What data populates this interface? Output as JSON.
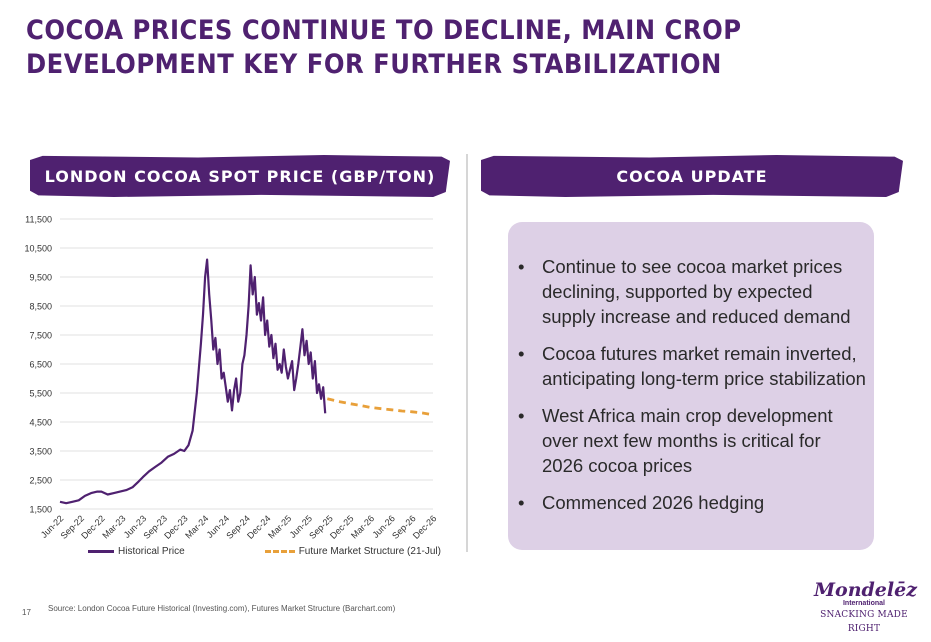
{
  "slide": {
    "title": "COCOA PRICES CONTINUE TO DECLINE, MAIN CROP DEVELOPMENT KEY FOR FURTHER STABILIZATION",
    "left_banner": "LONDON COCOA SPOT PRICE (GBP/TON)",
    "right_banner": "COCOA UPDATE",
    "bullets": [
      "Continue to see cocoa market prices declining, supported by expected supply increase and reduced demand",
      "Cocoa futures market remain inverted, anticipating long-term price stabilization",
      "West Africa main crop development over next few months is critical for 2026 cocoa prices",
      "Commenced 2026 hedging"
    ],
    "bullet_symbol": "•",
    "page_number": "17",
    "source": "Source: London Cocoa Future Historical (Investing.com), Futures Market Structure (Barchart.com)",
    "logo": {
      "name": "Mondelēz",
      "sub": "International",
      "tagline": "SNACKING MADE RIGHT"
    },
    "colors": {
      "brand_purple": "#4f2170",
      "futures_orange": "#e8a03a",
      "update_box": "#ddd0e6"
    }
  },
  "chart_data": {
    "type": "line",
    "title": "LONDON COCOA SPOT PRICE (GBP/TON)",
    "ylim": [
      1500,
      11500
    ],
    "y_ticks": [
      "1,500",
      "2,500",
      "3,500",
      "4,500",
      "5,500",
      "6,500",
      "7,500",
      "8,500",
      "9,500",
      "10,500",
      "11,500"
    ],
    "y_tick_values": [
      1500,
      2500,
      3500,
      4500,
      5500,
      6500,
      7500,
      8500,
      9500,
      10500,
      11500
    ],
    "categories": [
      "Jun-22",
      "Sep-22",
      "Dec-22",
      "Mar-23",
      "Jun-23",
      "Sep-23",
      "Dec-23",
      "Mar-24",
      "Jun-24",
      "Sep-24",
      "Dec-24",
      "Mar-25",
      "Jun-25",
      "Sep-25",
      "Dec-25",
      "Mar-26",
      "Jun-26",
      "Sep-26",
      "Dec-26"
    ],
    "grid": true,
    "legend_position": "bottom",
    "series": [
      {
        "name": "Historical Price",
        "color": "#4f2170",
        "style": "solid",
        "x": [
          0,
          0.3,
          0.6,
          0.9,
          1.2,
          1.5,
          1.8,
          2.0,
          2.3,
          2.6,
          2.9,
          3.2,
          3.5,
          3.8,
          4.0,
          4.3,
          4.6,
          4.9,
          5.2,
          5.5,
          5.8,
          6.0,
          6.2,
          6.4,
          6.6,
          6.8,
          6.9,
          7.0,
          7.1,
          7.2,
          7.3,
          7.4,
          7.5,
          7.6,
          7.7,
          7.8,
          7.9,
          8.0,
          8.1,
          8.2,
          8.3,
          8.4,
          8.5,
          8.6,
          8.7,
          8.8,
          8.9,
          9.0,
          9.1,
          9.2,
          9.3,
          9.4,
          9.5,
          9.6,
          9.7,
          9.8,
          9.9,
          10.0,
          10.1,
          10.2,
          10.3,
          10.4,
          10.5,
          10.6,
          10.7,
          10.8,
          10.9,
          11.0,
          11.1,
          11.2,
          11.3,
          11.4,
          11.5,
          11.6,
          11.7,
          11.8,
          11.9,
          12.0,
          12.1,
          12.2,
          12.3,
          12.4,
          12.5,
          12.6,
          12.7,
          12.8
        ],
        "values": [
          1750,
          1700,
          1750,
          1800,
          1950,
          2050,
          2100,
          2100,
          2000,
          2050,
          2100,
          2150,
          2250,
          2450,
          2600,
          2800,
          2950,
          3100,
          3300,
          3400,
          3550,
          3500,
          3700,
          4200,
          5500,
          7200,
          8200,
          9500,
          10100,
          8900,
          8000,
          7000,
          7400,
          6500,
          7000,
          6000,
          6200,
          5700,
          5200,
          5600,
          4900,
          5600,
          6000,
          5200,
          5500,
          6500,
          6800,
          7500,
          8500,
          9900,
          8900,
          9500,
          8200,
          8600,
          8000,
          8800,
          7500,
          8000,
          7100,
          7500,
          6700,
          7200,
          6300,
          6500,
          6200,
          7000,
          6400,
          6000,
          6300,
          6600,
          5600,
          6000,
          6500,
          7100,
          7700,
          6800,
          7300,
          6500,
          6900,
          6000,
          6600,
          5500,
          5800,
          5300,
          5700,
          4800
        ]
      },
      {
        "name": "Future Market Structure (21-Jul)",
        "color": "#e8a03a",
        "style": "dashed",
        "x": [
          12.9,
          13.5,
          14.0,
          14.5,
          15.0,
          15.5,
          16.0,
          16.5,
          17.0,
          17.5,
          18.0
        ],
        "values": [
          5300,
          5200,
          5130,
          5070,
          5000,
          4960,
          4920,
          4880,
          4850,
          4810,
          4750
        ]
      }
    ]
  }
}
